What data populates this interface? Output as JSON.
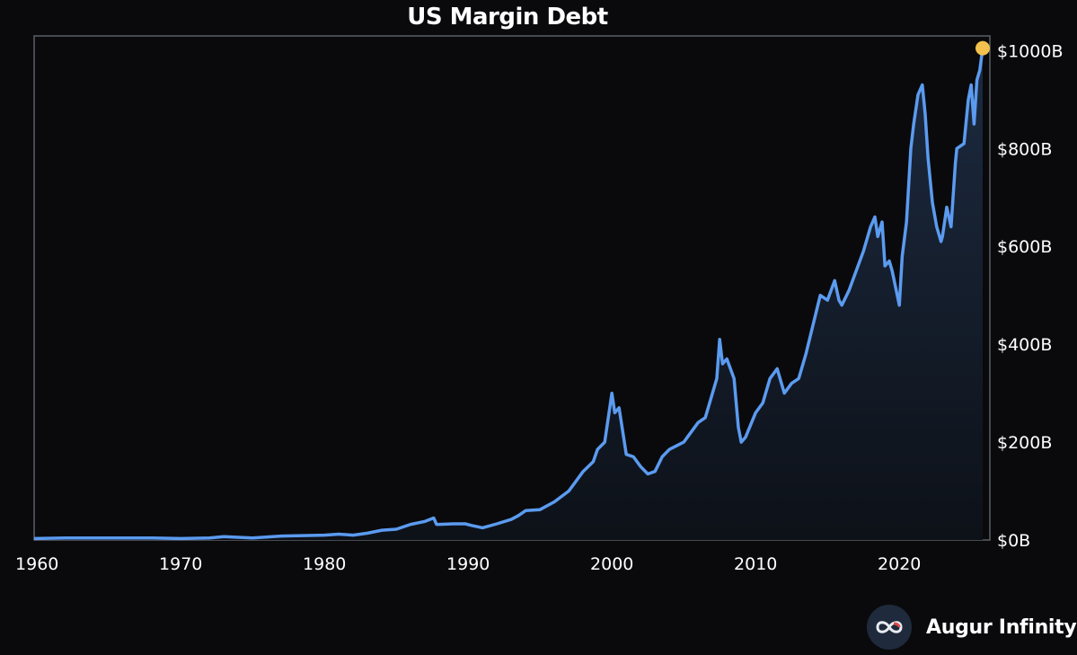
{
  "chart_data": {
    "type": "area",
    "title": "US Margin Debt",
    "xlabel": "",
    "ylabel": "",
    "xlim": [
      1959.8,
      2026.3
    ],
    "ylim": [
      0,
      1030
    ],
    "x_ticks": [
      1960,
      1970,
      1980,
      1990,
      2000,
      2010,
      2020
    ],
    "y_ticks": [
      0,
      200,
      400,
      600,
      800,
      1000
    ],
    "y_tick_labels": [
      "$0B",
      "$200B",
      "$400B",
      "$600B",
      "$800B",
      "$1000B"
    ],
    "grid": false,
    "colors": {
      "line": "#5b9bf0",
      "fill_top": "#1c2a40",
      "fill_bottom": "#0d1118",
      "latest_marker": "#f2c14e",
      "frame": "#5a5f66"
    },
    "series": [
      {
        "x": [
          1959.8,
          1962,
          1965,
          1968,
          1970,
          1972,
          1973,
          1975,
          1977,
          1980,
          1981,
          1982,
          1983,
          1984,
          1985,
          1986,
          1987.0,
          1987.6,
          1987.8,
          1988,
          1989,
          1989.8,
          1990.2,
          1991,
          1992,
          1993,
          1993.5,
          1994,
          1995,
          1996,
          1997,
          1998,
          1998.7,
          1999,
          1999.5,
          2000.0,
          2000.2,
          2000.5,
          2001.0,
          2001.5,
          2002.0,
          2002.5,
          2003.0,
          2003.5,
          2004,
          2005,
          2006,
          2006.5,
          2007.0,
          2007.3,
          2007.5,
          2007.7,
          2008,
          2008.5,
          2008.8,
          2009.0,
          2009.3,
          2010,
          2010.5,
          2011.0,
          2011.5,
          2011.8,
          2012,
          2012.5,
          2013,
          2013.5,
          2014.0,
          2014.5,
          2015.0,
          2015.5,
          2015.8,
          2016.0,
          2016.5,
          2017.0,
          2017.5,
          2018.0,
          2018.3,
          2018.5,
          2018.8,
          2019.0,
          2019.3,
          2019.5,
          2020.0,
          2020.2,
          2020.5,
          2020.8,
          2021.0,
          2021.3,
          2021.6,
          2021.8,
          2022.0,
          2022.3,
          2022.6,
          2022.9,
          2023.0,
          2023.3,
          2023.6,
          2023.9,
          2024.0,
          2024.5,
          2024.8,
          2025.0,
          2025.2,
          2025.4,
          2025.6,
          2025.8
        ],
        "y": [
          3,
          4,
          4,
          4,
          3,
          4,
          7,
          4,
          8,
          10,
          12,
          10,
          14,
          20,
          22,
          32,
          38,
          45,
          32,
          32,
          33,
          33,
          30,
          25,
          33,
          42,
          50,
          60,
          62,
          78,
          100,
          140,
          160,
          185,
          200,
          300,
          260,
          270,
          175,
          170,
          150,
          135,
          140,
          170,
          185,
          200,
          240,
          250,
          300,
          330,
          410,
          360,
          370,
          330,
          230,
          200,
          210,
          260,
          280,
          330,
          350,
          320,
          300,
          320,
          330,
          380,
          440,
          500,
          490,
          530,
          490,
          480,
          510,
          550,
          590,
          640,
          660,
          620,
          650,
          560,
          570,
          550,
          480,
          580,
          650,
          800,
          850,
          910,
          930,
          870,
          780,
          690,
          640,
          610,
          620,
          680,
          640,
          770,
          800,
          810,
          900,
          930,
          850,
          940,
          960,
          1005
        ]
      }
    ],
    "latest_point": {
      "x": 2025.8,
      "y": 1005
    }
  },
  "branding": {
    "name": "Augur Infinity",
    "icon": "infinity-logo-icon"
  }
}
